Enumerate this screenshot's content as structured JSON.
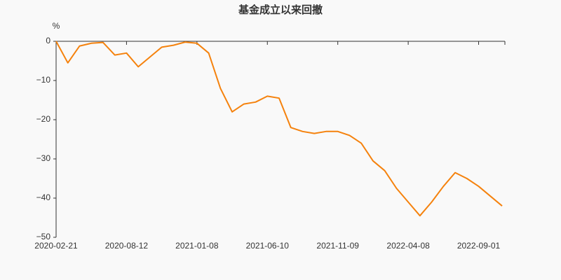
{
  "chart_data": {
    "type": "line",
    "title": "基金成立以来回撤",
    "y_unit": "%",
    "x": [
      "2020-02-21",
      "2020-03-20",
      "2020-04-20",
      "2020-05-20",
      "2020-06-17",
      "2020-07-15",
      "2020-08-12",
      "2020-09-08",
      "2020-10-13",
      "2020-11-09",
      "2020-11-25",
      "2020-12-16",
      "2021-01-08",
      "2021-02-03",
      "2021-03-05",
      "2021-03-31",
      "2021-04-27",
      "2021-05-20",
      "2021-06-10",
      "2021-07-05",
      "2021-08-02",
      "2021-08-27",
      "2021-09-24",
      "2021-10-22",
      "2021-11-09",
      "2021-12-06",
      "2022-01-04",
      "2022-01-27",
      "2022-02-25",
      "2022-03-17",
      "2022-04-08",
      "2022-05-06",
      "2022-06-02",
      "2022-06-24",
      "2022-07-19",
      "2022-08-10",
      "2022-09-01",
      "2022-09-23",
      "2022-10-17"
    ],
    "series": [
      {
        "name": "基金成立以来回撤",
        "color": "#f5820d",
        "values": [
          0,
          -5.5,
          -1.2,
          -0.5,
          -0.3,
          -3.5,
          -3,
          -6.5,
          -4,
          -1.5,
          -1,
          -0.2,
          -0.5,
          -3,
          -12,
          -18,
          -16,
          -15.5,
          -14,
          -14.5,
          -22,
          -23,
          -23.5,
          -23,
          -23,
          -24,
          -26,
          -30.5,
          -33,
          -37.5,
          -41,
          -44.5,
          -41,
          -37,
          -33.5,
          -35,
          -37,
          -39.5,
          -42
        ]
      }
    ],
    "xticks": [
      "2020-02-21",
      "2020-08-12",
      "2021-01-08",
      "2021-06-10",
      "2021-11-09",
      "2022-04-08",
      "2022-09-01"
    ],
    "ylim": [
      -50,
      0
    ],
    "yticks": [
      0,
      {
        "value": -10,
        "label": "−10"
      },
      {
        "value": -20,
        "label": "−20"
      },
      {
        "value": -30,
        "label": "−30"
      },
      {
        "value": -40,
        "label": "−40"
      },
      {
        "value": -50,
        "label": "−50"
      }
    ]
  }
}
